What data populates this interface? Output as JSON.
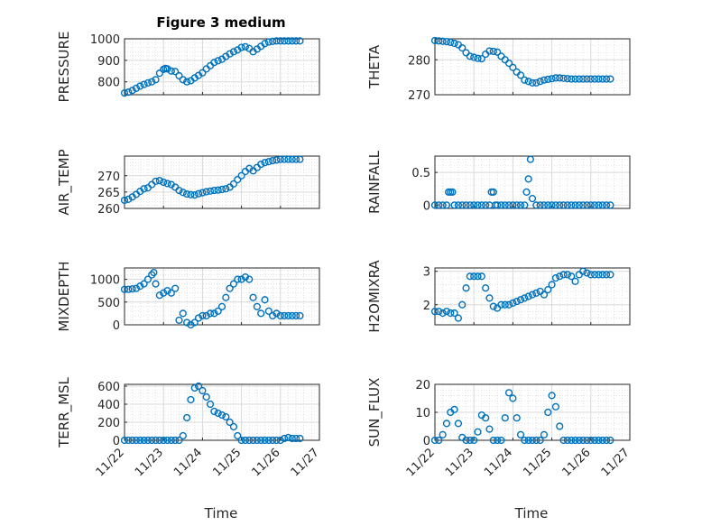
{
  "figure_title": "Figure 3 medium",
  "x_axis_label": "Time",
  "x_tick_labels": [
    "11/22",
    "11/23",
    "11/24",
    "11/25",
    "11/26",
    "11/27"
  ],
  "marker_color": "#0072BD",
  "chart_data": [
    {
      "type": "scatter",
      "name": "pressure",
      "ylabel": "PRESSURE",
      "ylim": [
        740,
        1000
      ],
      "yticks": [
        800,
        900,
        1000
      ],
      "x": [
        0,
        0.1,
        0.2,
        0.3,
        0.4,
        0.5,
        0.6,
        0.7,
        0.8,
        0.9,
        1.0,
        1.05,
        1.1,
        1.2,
        1.3,
        1.4,
        1.5,
        1.6,
        1.7,
        1.8,
        1.9,
        2.0,
        2.1,
        2.2,
        2.3,
        2.4,
        2.5,
        2.6,
        2.7,
        2.8,
        2.9,
        3.0,
        3.1,
        3.2,
        3.3,
        3.4,
        3.5,
        3.6,
        3.7,
        3.8,
        3.9,
        4.0,
        4.1,
        4.2,
        4.3,
        4.4,
        4.5
      ],
      "y": [
        748,
        752,
        760,
        770,
        780,
        788,
        795,
        800,
        810,
        840,
        858,
        862,
        860,
        850,
        848,
        828,
        810,
        800,
        805,
        818,
        830,
        842,
        860,
        875,
        890,
        898,
        905,
        918,
        930,
        940,
        948,
        960,
        963,
        955,
        940,
        952,
        965,
        978,
        985,
        988,
        990,
        990,
        990,
        990,
        990,
        990,
        990
      ]
    },
    {
      "type": "scatter",
      "name": "theta",
      "ylabel": "THETA",
      "ylim": [
        270,
        286
      ],
      "yticks": [
        270,
        280
      ],
      "x": [
        0,
        0.1,
        0.2,
        0.3,
        0.4,
        0.5,
        0.6,
        0.7,
        0.8,
        0.9,
        1.0,
        1.1,
        1.2,
        1.3,
        1.4,
        1.5,
        1.6,
        1.7,
        1.8,
        1.9,
        2.0,
        2.1,
        2.2,
        2.3,
        2.4,
        2.5,
        2.6,
        2.7,
        2.8,
        2.9,
        3.0,
        3.1,
        3.2,
        3.3,
        3.4,
        3.5,
        3.6,
        3.7,
        3.8,
        3.9,
        4.0,
        4.1,
        4.2,
        4.3,
        4.4,
        4.5
      ],
      "y": [
        285.5,
        285.4,
        285.3,
        285.2,
        285.0,
        284.7,
        284.3,
        283.4,
        282.0,
        281.0,
        280.7,
        280.4,
        280.3,
        281.6,
        282.5,
        282.4,
        282.2,
        281.0,
        280.0,
        279.0,
        277.8,
        276.5,
        275.6,
        274.2,
        273.8,
        273.4,
        273.4,
        273.8,
        274.2,
        274.4,
        274.6,
        274.8,
        274.8,
        274.7,
        274.6,
        274.5,
        274.5,
        274.5,
        274.5,
        274.5,
        274.5,
        274.5,
        274.5,
        274.5,
        274.5,
        274.5
      ]
    },
    {
      "type": "scatter",
      "name": "air_temp",
      "ylabel": "AIR_TEMP",
      "ylim": [
        260,
        276
      ],
      "yticks": [
        260,
        265,
        270
      ],
      "x": [
        0,
        0.1,
        0.2,
        0.3,
        0.4,
        0.5,
        0.6,
        0.7,
        0.8,
        0.9,
        1.0,
        1.1,
        1.2,
        1.3,
        1.4,
        1.5,
        1.6,
        1.7,
        1.8,
        1.9,
        2.0,
        2.1,
        2.2,
        2.3,
        2.4,
        2.5,
        2.6,
        2.7,
        2.8,
        2.9,
        3.0,
        3.1,
        3.2,
        3.3,
        3.4,
        3.5,
        3.6,
        3.7,
        3.8,
        3.9,
        4.0,
        4.1,
        4.2,
        4.3,
        4.4,
        4.5
      ],
      "y": [
        262.5,
        262.8,
        263.5,
        264.3,
        265.2,
        266.0,
        266.3,
        267.3,
        268.3,
        268.5,
        268.0,
        267.6,
        267.3,
        266.5,
        265.5,
        264.9,
        264.4,
        264.2,
        264.1,
        264.5,
        264.8,
        265.1,
        265.3,
        265.5,
        265.6,
        265.8,
        266.0,
        266.5,
        267.5,
        268.8,
        270.0,
        271.3,
        272.2,
        271.5,
        272.5,
        273.5,
        274.0,
        274.3,
        274.6,
        274.8,
        275.0,
        275.0,
        275.0,
        275.0,
        275.0,
        275.0
      ]
    },
    {
      "type": "scatter",
      "name": "rainfall",
      "ylabel": "RAINFALL",
      "ylim": [
        -0.05,
        0.75
      ],
      "yticks": [
        0,
        0.5
      ],
      "x": [
        0,
        0.1,
        0.2,
        0.3,
        0.35,
        0.4,
        0.45,
        0.5,
        0.6,
        0.7,
        0.8,
        0.9,
        1.0,
        1.1,
        1.2,
        1.3,
        1.4,
        1.45,
        1.5,
        1.55,
        1.6,
        1.7,
        1.8,
        1.9,
        2.0,
        2.1,
        2.2,
        2.3,
        2.35,
        2.4,
        2.45,
        2.5,
        2.6,
        2.7,
        2.8,
        2.9,
        3.0,
        3.1,
        3.2,
        3.3,
        3.4,
        3.5,
        3.6,
        3.7,
        3.8,
        3.9,
        4.0,
        4.1,
        4.2,
        4.3,
        4.4,
        4.5
      ],
      "y": [
        0,
        0,
        0,
        0,
        0.2,
        0.2,
        0.2,
        0,
        0,
        0,
        0,
        0,
        0,
        0,
        0,
        0,
        0,
        0.2,
        0.2,
        0,
        0,
        0,
        0,
        0,
        0,
        0,
        0,
        0,
        0.2,
        0.4,
        0.7,
        0.1,
        0,
        0,
        0,
        0,
        0,
        0,
        0,
        0,
        0,
        0,
        0,
        0,
        0,
        0,
        0,
        0,
        0,
        0,
        0,
        0
      ]
    },
    {
      "type": "scatter",
      "name": "mixdepth",
      "ylabel": "MIXDEPTH",
      "ylim": [
        0,
        1250
      ],
      "yticks": [
        0,
        500,
        1000
      ],
      "x": [
        0,
        0.1,
        0.2,
        0.3,
        0.4,
        0.5,
        0.6,
        0.7,
        0.75,
        0.8,
        0.9,
        1.0,
        1.1,
        1.2,
        1.3,
        1.4,
        1.5,
        1.6,
        1.7,
        1.8,
        1.9,
        2.0,
        2.1,
        2.2,
        2.3,
        2.4,
        2.5,
        2.6,
        2.7,
        2.8,
        2.9,
        3.0,
        3.1,
        3.2,
        3.3,
        3.4,
        3.5,
        3.6,
        3.7,
        3.8,
        3.9,
        4.0,
        4.1,
        4.2,
        4.3,
        4.4,
        4.5
      ],
      "y": [
        780,
        780,
        790,
        800,
        850,
        900,
        1000,
        1100,
        1150,
        900,
        650,
        700,
        750,
        700,
        800,
        100,
        250,
        50,
        0,
        50,
        150,
        200,
        200,
        250,
        250,
        300,
        400,
        600,
        800,
        900,
        1000,
        1000,
        1050,
        1000,
        600,
        400,
        250,
        550,
        300,
        200,
        250,
        200,
        200,
        200,
        200,
        200,
        200
      ]
    },
    {
      "type": "scatter",
      "name": "h2omixra",
      "ylabel": "H2OMIXRA",
      "ylim": [
        1.4,
        3.1
      ],
      "yticks": [
        2,
        3
      ],
      "x": [
        0,
        0.1,
        0.2,
        0.3,
        0.4,
        0.5,
        0.6,
        0.7,
        0.8,
        0.9,
        1.0,
        1.1,
        1.2,
        1.3,
        1.4,
        1.5,
        1.6,
        1.7,
        1.8,
        1.9,
        2.0,
        2.1,
        2.2,
        2.3,
        2.4,
        2.5,
        2.6,
        2.7,
        2.8,
        2.9,
        3.0,
        3.1,
        3.2,
        3.3,
        3.4,
        3.5,
        3.6,
        3.7,
        3.8,
        3.9,
        4.0,
        4.1,
        4.2,
        4.3,
        4.4,
        4.5
      ],
      "y": [
        1.8,
        1.8,
        1.75,
        1.8,
        1.75,
        1.75,
        1.6,
        2.0,
        2.5,
        2.85,
        2.85,
        2.85,
        2.85,
        2.5,
        2.2,
        1.95,
        1.9,
        2.0,
        2.0,
        2.0,
        2.05,
        2.1,
        2.15,
        2.2,
        2.25,
        2.3,
        2.35,
        2.4,
        2.3,
        2.45,
        2.6,
        2.8,
        2.85,
        2.9,
        2.9,
        2.85,
        2.7,
        2.9,
        3.0,
        2.95,
        2.9,
        2.9,
        2.9,
        2.9,
        2.9,
        2.9
      ]
    },
    {
      "type": "scatter",
      "name": "terr_msl",
      "ylabel": "TERR_MSL",
      "ylim": [
        0,
        620
      ],
      "yticks": [
        0,
        200,
        400,
        600
      ],
      "x": [
        0,
        0.1,
        0.2,
        0.3,
        0.4,
        0.5,
        0.6,
        0.7,
        0.8,
        0.9,
        1.0,
        1.1,
        1.2,
        1.3,
        1.4,
        1.5,
        1.6,
        1.7,
        1.8,
        1.9,
        2.0,
        2.1,
        2.2,
        2.3,
        2.4,
        2.5,
        2.6,
        2.7,
        2.8,
        2.9,
        3.0,
        3.1,
        3.2,
        3.3,
        3.4,
        3.5,
        3.6,
        3.7,
        3.8,
        3.9,
        4.0,
        4.1,
        4.2,
        4.3,
        4.4,
        4.5
      ],
      "y": [
        0,
        0,
        0,
        0,
        0,
        0,
        0,
        0,
        0,
        0,
        0,
        0,
        0,
        0,
        0,
        50,
        250,
        450,
        580,
        600,
        550,
        480,
        400,
        320,
        300,
        280,
        260,
        200,
        150,
        50,
        0,
        0,
        0,
        0,
        0,
        0,
        0,
        0,
        0,
        0,
        0,
        20,
        30,
        20,
        20,
        20
      ]
    },
    {
      "type": "scatter",
      "name": "sun_flux",
      "ylabel": "SUN_FLUX",
      "ylim": [
        0,
        20
      ],
      "yticks": [
        0,
        10,
        20
      ],
      "x": [
        0,
        0.1,
        0.2,
        0.3,
        0.4,
        0.5,
        0.6,
        0.7,
        0.8,
        0.9,
        1.0,
        1.1,
        1.2,
        1.3,
        1.4,
        1.5,
        1.6,
        1.7,
        1.8,
        1.9,
        2.0,
        2.1,
        2.2,
        2.3,
        2.4,
        2.5,
        2.6,
        2.7,
        2.8,
        2.9,
        3.0,
        3.1,
        3.2,
        3.3,
        3.4,
        3.5,
        3.6,
        3.7,
        3.8,
        3.9,
        4.0,
        4.1,
        4.2,
        4.3,
        4.4,
        4.5
      ],
      "y": [
        0,
        0,
        2,
        6,
        10,
        11,
        6,
        1,
        0,
        0,
        0,
        3,
        9,
        8,
        4,
        0,
        0,
        0,
        8,
        17,
        15,
        8,
        2,
        0,
        0,
        0,
        0,
        0,
        2,
        10,
        16,
        12,
        5,
        0,
        0,
        0,
        0,
        0,
        0,
        0,
        0,
        0,
        0,
        0,
        0,
        0
      ]
    }
  ]
}
